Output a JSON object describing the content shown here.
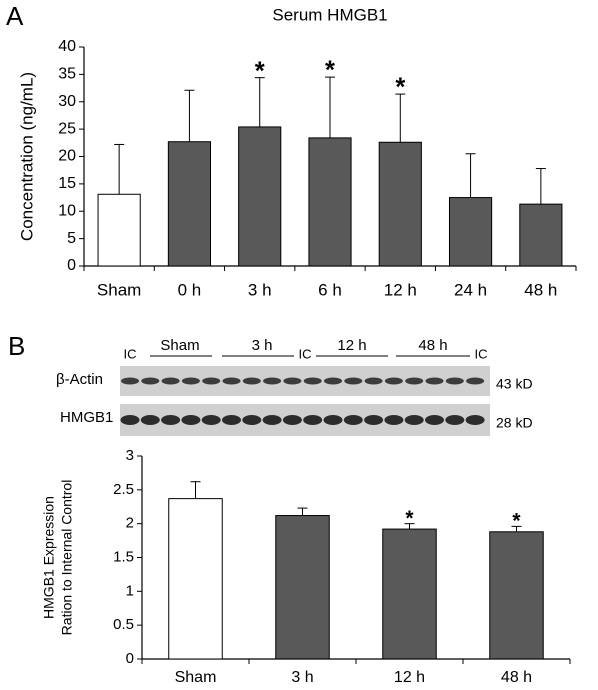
{
  "panels": [
    "A",
    "B"
  ],
  "blot": {
    "lanes": [
      "IC",
      "Sham",
      "3 h",
      "IC",
      "12 h",
      "48 h",
      "IC"
    ],
    "rows": [
      {
        "label": "β-Actin",
        "size": "43 kD"
      },
      {
        "label": "HMGB1",
        "size": "28 kD"
      }
    ]
  },
  "chart_data": [
    {
      "type": "bar",
      "title": "Serum HMGB1",
      "ylabel": [
        "Concentration (ng/mL)"
      ],
      "categories": [
        "Sham",
        "0 h",
        "3 h",
        "6 h",
        "12 h",
        "24 h",
        "48 h"
      ],
      "values": [
        13.1,
        22.7,
        25.4,
        23.4,
        22.6,
        12.5,
        11.3
      ],
      "errors": [
        9.1,
        9.4,
        9.0,
        11.1,
        8.8,
        8.0,
        6.5
      ],
      "colors": [
        "#ffffff",
        "#595959",
        "#595959",
        "#595959",
        "#595959",
        "#595959",
        "#595959"
      ],
      "ylim": [
        0,
        40
      ],
      "yticks": [
        0,
        5,
        10,
        15,
        20,
        25,
        30,
        35,
        40
      ],
      "annotations": [
        {
          "text": "*",
          "category": "3 h"
        },
        {
          "text": "*",
          "category": "6 h"
        },
        {
          "text": "*",
          "category": "12 h"
        }
      ]
    },
    {
      "type": "bar",
      "ylabel": [
        "HMGB1 Expression",
        "Ration to Internal Control"
      ],
      "categories": [
        "Sham",
        "3 h",
        "12 h",
        "48 h"
      ],
      "values": [
        2.37,
        2.12,
        1.92,
        1.88
      ],
      "errors": [
        0.25,
        0.11,
        0.08,
        0.08
      ],
      "colors": [
        "#ffffff",
        "#595959",
        "#595959",
        "#595959"
      ],
      "ylim": [
        0,
        3
      ],
      "yticks": [
        0,
        0.5,
        1,
        1.5,
        2,
        2.5,
        3
      ],
      "annotations": [
        {
          "text": "*",
          "category": "12 h"
        },
        {
          "text": "*",
          "category": "48 h"
        }
      ]
    }
  ]
}
